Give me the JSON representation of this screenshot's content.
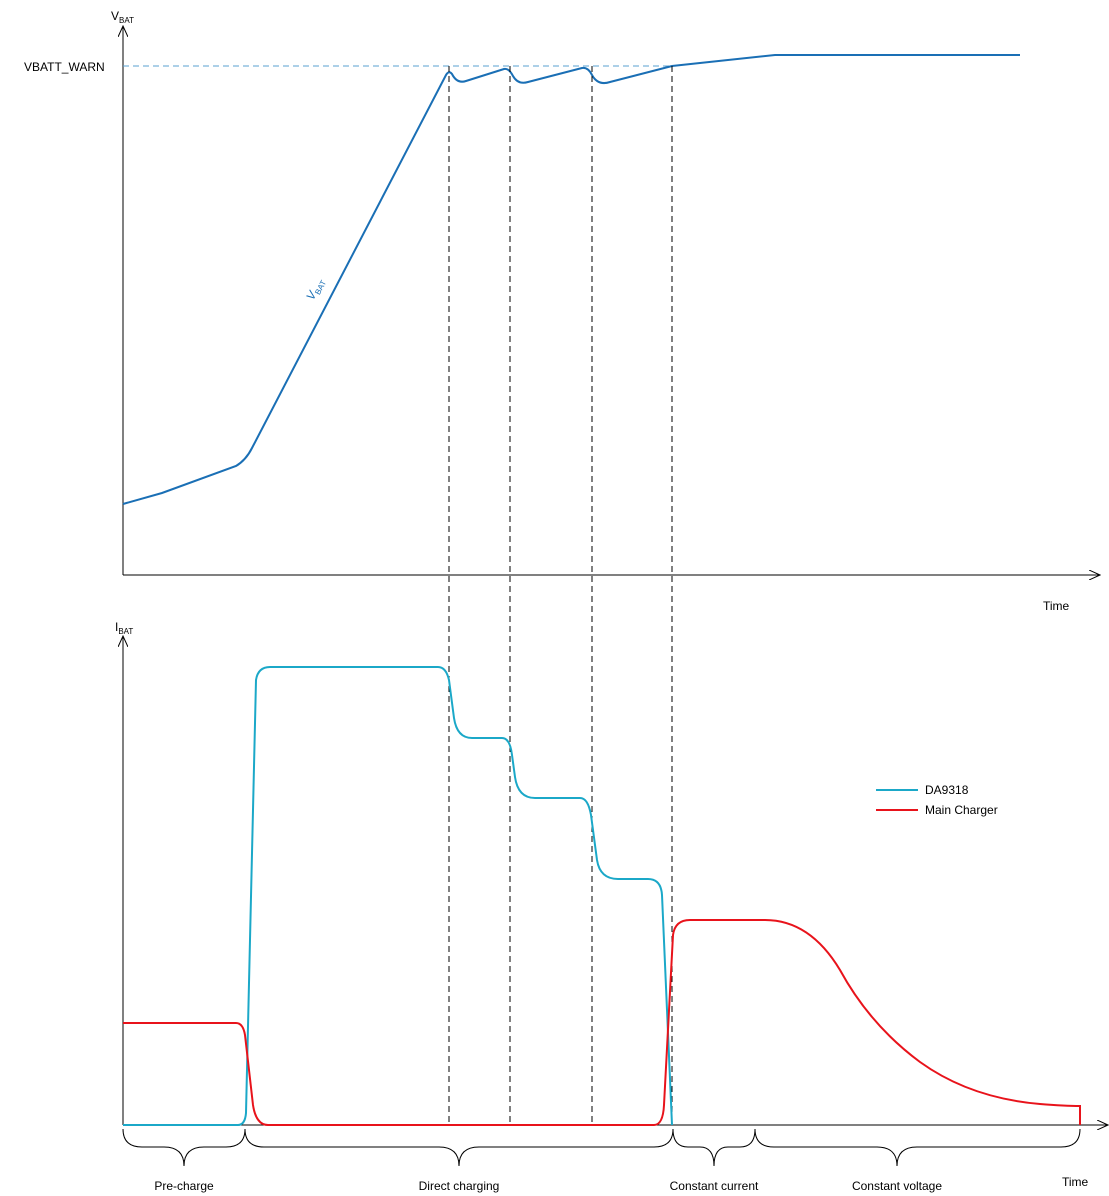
{
  "top_axis": {
    "y_label": "V",
    "y_label_sub": "BAT",
    "x_label": "Time",
    "threshold_label": "VBATT_WARN",
    "curve_label": "V",
    "curve_label_sub": "BAT"
  },
  "bottom_axis": {
    "y_label": "I",
    "y_label_sub": "BAT",
    "x_label": "Time"
  },
  "legend": [
    {
      "name": "DA9318",
      "color": "#1ba8c8"
    },
    {
      "name": "Main Charger",
      "color": "#e8131b"
    }
  ],
  "phases": [
    {
      "label": "Pre-charge"
    },
    {
      "label": "Direct charging"
    },
    {
      "label": "Constant current"
    },
    {
      "label": "Constant voltage"
    }
  ],
  "colors": {
    "vbat": "#1a6fb5",
    "threshold": "#5aa0d0",
    "da9318": "#1ba8c8",
    "main_charger": "#e8131b",
    "axes": "#000000"
  }
}
